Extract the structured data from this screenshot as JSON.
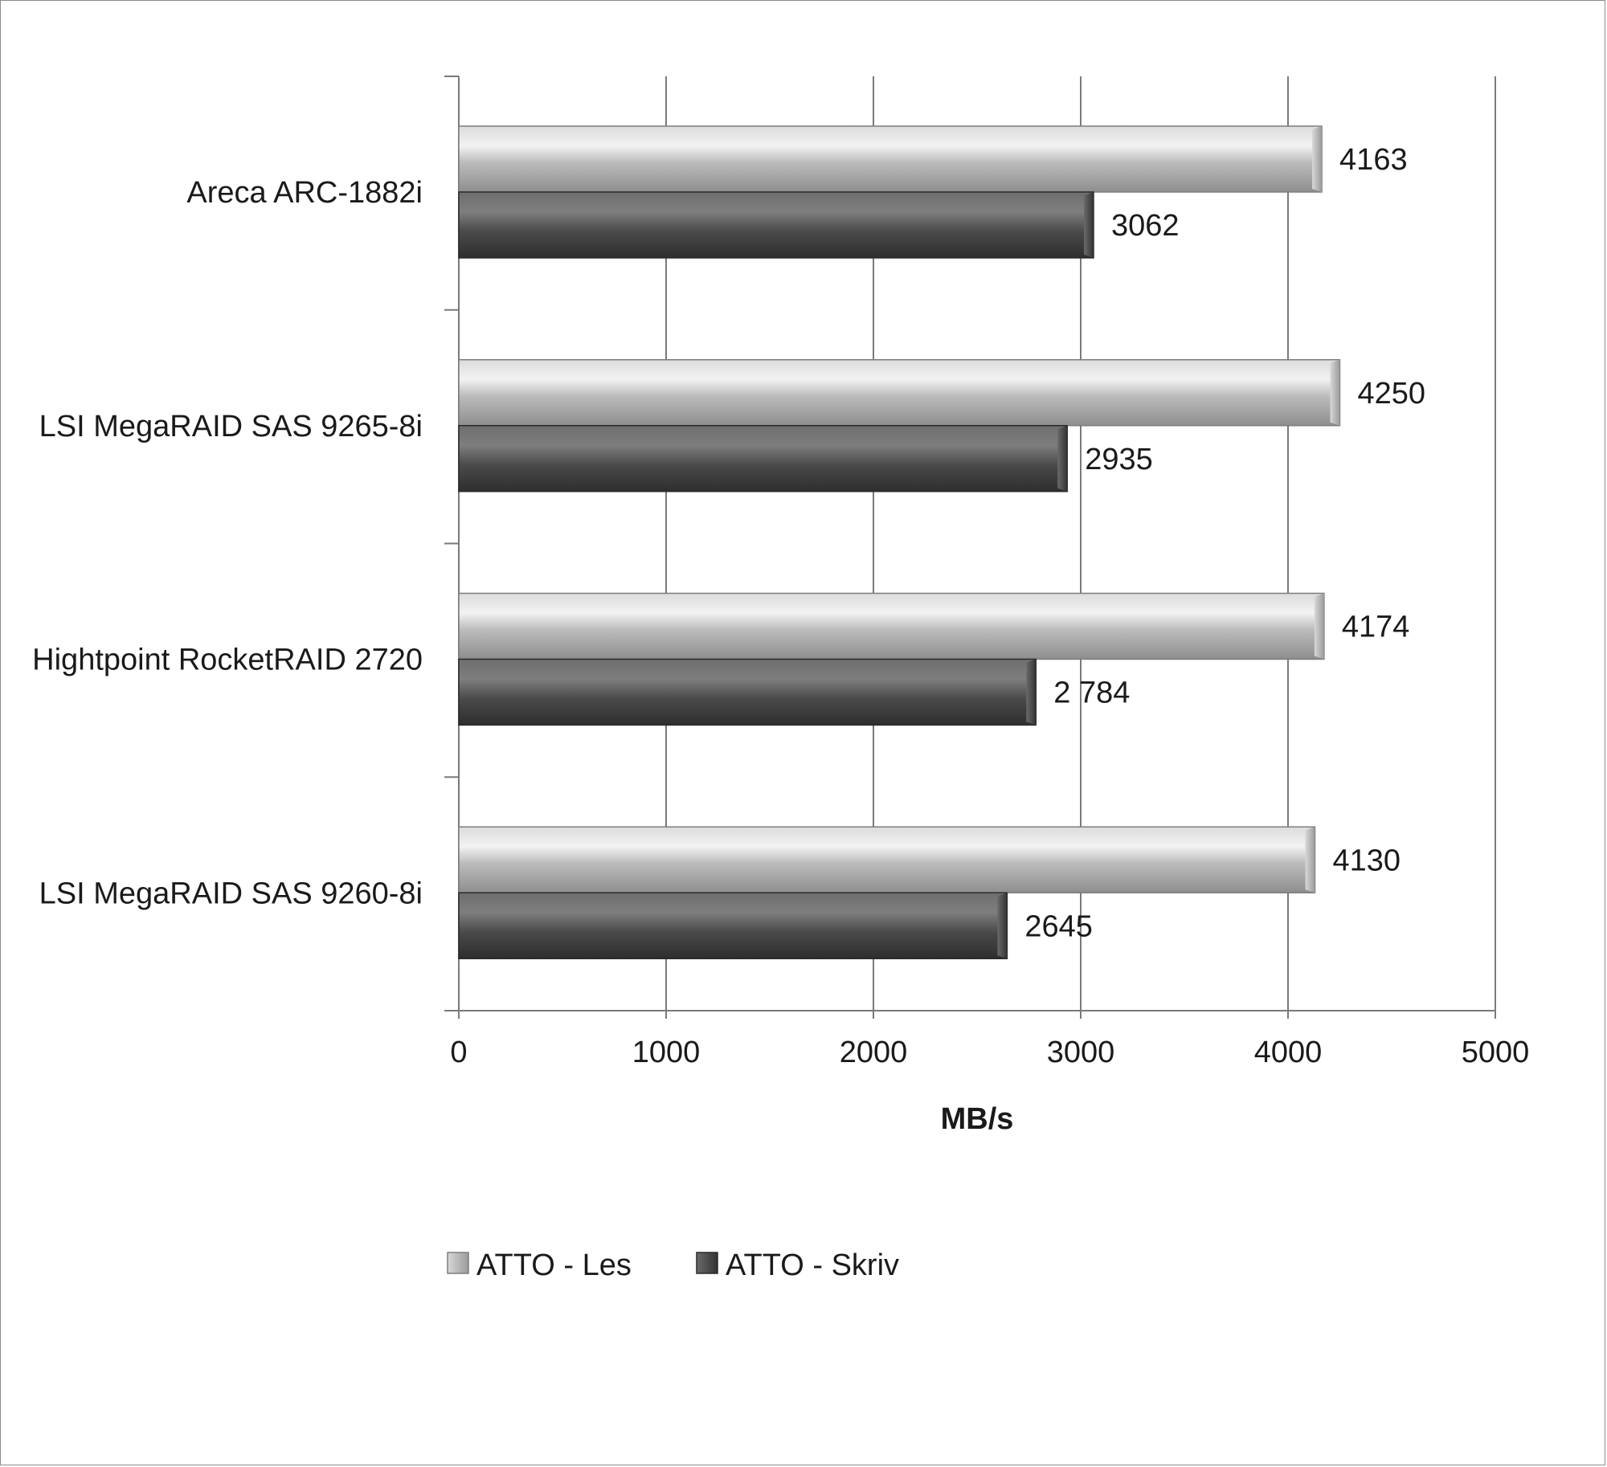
{
  "chart_data": {
    "type": "bar",
    "orientation": "horizontal",
    "categories": [
      "Areca ARC-1882i",
      "LSI MegaRAID SAS 9265-8i",
      "Hightpoint RocketRAID 2720",
      "LSI MegaRAID SAS 9260-8i"
    ],
    "series": [
      {
        "name": "ATTO - Les",
        "values": [
          4163,
          4250,
          4174,
          4130
        ],
        "labels": [
          "4163",
          "4250",
          "4174",
          "4130"
        ],
        "color": "#b5b5b5"
      },
      {
        "name": "ATTO - Skriv",
        "values": [
          3062,
          2935,
          2784,
          2645
        ],
        "labels": [
          "3062",
          "2935",
          "2 784",
          "2645"
        ],
        "color": "#555555"
      }
    ],
    "xlabel": "MB/s",
    "ylabel": "",
    "xlim": [
      0,
      5000
    ],
    "xticks": [
      "0",
      "1000",
      "2000",
      "3000",
      "4000",
      "5000"
    ],
    "grid": true,
    "legend_position": "bottom"
  }
}
